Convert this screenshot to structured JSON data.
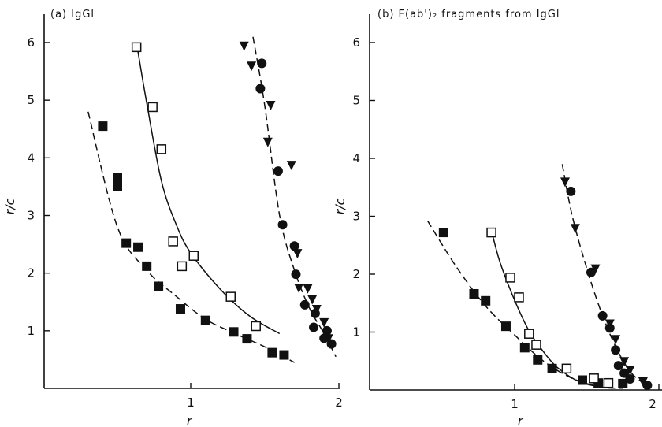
{
  "chart_data": [
    {
      "type": "scatter",
      "title": "(a) IgGl",
      "xlabel": "r",
      "ylabel": "r/c",
      "xlim": [
        0,
        2
      ],
      "ylim": [
        0,
        6.4
      ],
      "xticks": [
        "1",
        "2"
      ],
      "yticks": [
        "1",
        "2",
        "3",
        "4",
        "5",
        "6"
      ],
      "series": [
        {
          "marker": "filled-square",
          "points": [
            [
              0.4,
              4.55
            ],
            [
              0.5,
              3.65
            ],
            [
              0.5,
              3.5
            ],
            [
              0.56,
              2.52
            ],
            [
              0.64,
              2.45
            ],
            [
              0.7,
              2.12
            ],
            [
              0.78,
              1.77
            ],
            [
              0.93,
              1.38
            ],
            [
              1.1,
              1.18
            ],
            [
              1.29,
              0.98
            ],
            [
              1.38,
              0.86
            ],
            [
              1.55,
              0.62
            ],
            [
              1.63,
              0.58
            ]
          ],
          "fit": [
            [
              0.3,
              4.8
            ],
            [
              0.5,
              2.8
            ],
            [
              0.7,
              2.05
            ],
            [
              0.9,
              1.6
            ],
            [
              1.1,
              1.2
            ],
            [
              1.3,
              0.95
            ],
            [
              1.5,
              0.72
            ],
            [
              1.7,
              0.45
            ]
          ],
          "fit_style": "dashed"
        },
        {
          "marker": "open-square",
          "points": [
            [
              0.63,
              5.92
            ],
            [
              0.74,
              4.88
            ],
            [
              0.8,
              4.15
            ],
            [
              0.88,
              2.55
            ],
            [
              0.94,
              2.12
            ],
            [
              1.02,
              2.3
            ],
            [
              1.27,
              1.59
            ],
            [
              1.44,
              1.08
            ]
          ],
          "fit": [
            [
              0.63,
              6.0
            ],
            [
              0.7,
              4.95
            ],
            [
              0.8,
              3.6
            ],
            [
              0.9,
              2.85
            ],
            [
              1.0,
              2.35
            ],
            [
              1.2,
              1.72
            ],
            [
              1.4,
              1.25
            ],
            [
              1.6,
              0.95
            ]
          ],
          "fit_style": "solid"
        },
        {
          "marker": "filled-circle",
          "points": [
            [
              1.48,
              5.64
            ],
            [
              1.47,
              5.2
            ],
            [
              1.59,
              3.77
            ],
            [
              1.62,
              2.84
            ],
            [
              1.7,
              2.47
            ],
            [
              1.71,
              1.98
            ],
            [
              1.77,
              1.45
            ],
            [
              1.84,
              1.3
            ],
            [
              1.83,
              1.06
            ],
            [
              1.92,
              1.0
            ],
            [
              1.9,
              0.87
            ],
            [
              1.95,
              0.77
            ]
          ],
          "fit": [
            [
              1.42,
              6.1
            ],
            [
              1.5,
              4.9
            ],
            [
              1.6,
              3.0
            ],
            [
              1.7,
              2.05
            ],
            [
              1.8,
              1.4
            ],
            [
              1.9,
              0.95
            ],
            [
              1.98,
              0.55
            ]
          ],
          "fit_style": "dashed"
        },
        {
          "marker": "filled-triangle-down",
          "points": [
            [
              1.36,
              5.95
            ],
            [
              1.41,
              5.6
            ],
            [
              1.54,
              4.92
            ],
            [
              1.52,
              4.28
            ],
            [
              1.68,
              3.88
            ],
            [
              1.72,
              2.35
            ],
            [
              1.73,
              1.75
            ],
            [
              1.79,
              1.74
            ],
            [
              1.82,
              1.55
            ],
            [
              1.85,
              1.38
            ],
            [
              1.9,
              1.15
            ],
            [
              1.93,
              0.87
            ]
          ]
        }
      ]
    },
    {
      "type": "scatter",
      "title": "(b) F(ab')₂ fragments from IgGl",
      "xlabel": "r",
      "ylabel": "r/c",
      "xlim": [
        0,
        2
      ],
      "ylim": [
        0,
        6.4
      ],
      "xticks": [
        "1",
        "2"
      ],
      "yticks": [
        "1",
        "2",
        "3",
        "4",
        "5",
        "6"
      ],
      "series": [
        {
          "marker": "filled-square",
          "points": [
            [
              0.51,
              2.72
            ],
            [
              0.72,
              1.66
            ],
            [
              0.8,
              1.54
            ],
            [
              0.94,
              1.1
            ],
            [
              1.07,
              0.73
            ],
            [
              1.16,
              0.52
            ],
            [
              1.26,
              0.37
            ],
            [
              1.47,
              0.17
            ],
            [
              1.58,
              0.12
            ],
            [
              1.75,
              0.11
            ]
          ],
          "fit": [
            [
              0.4,
              2.92
            ],
            [
              0.6,
              2.12
            ],
            [
              0.8,
              1.45
            ],
            [
              1.0,
              0.95
            ],
            [
              1.2,
              0.5
            ],
            [
              1.4,
              0.2
            ],
            [
              1.6,
              0.05
            ],
            [
              1.75,
              0.03
            ]
          ],
          "fit_style": "dashed"
        },
        {
          "marker": "open-square",
          "points": [
            [
              0.84,
              2.72
            ],
            [
              0.97,
              1.94
            ],
            [
              1.03,
              1.6
            ],
            [
              1.1,
              0.97
            ],
            [
              1.15,
              0.78
            ],
            [
              1.36,
              0.37
            ],
            [
              1.55,
              0.2
            ],
            [
              1.65,
              0.12
            ]
          ],
          "fit": [
            [
              0.84,
              2.75
            ],
            [
              0.9,
              2.2
            ],
            [
              1.0,
              1.55
            ],
            [
              1.1,
              1.02
            ],
            [
              1.2,
              0.66
            ],
            [
              1.3,
              0.38
            ],
            [
              1.45,
              0.14
            ],
            [
              1.6,
              0.05
            ]
          ],
          "fit_style": "solid"
        },
        {
          "marker": "filled-circle",
          "points": [
            [
              1.39,
              3.43
            ],
            [
              1.53,
              2.03
            ],
            [
              1.61,
              1.28
            ],
            [
              1.66,
              1.07
            ],
            [
              1.7,
              0.69
            ],
            [
              1.72,
              0.42
            ],
            [
              1.76,
              0.29
            ],
            [
              1.8,
              0.19
            ],
            [
              1.92,
              0.08
            ]
          ]
        },
        {
          "marker": "filled-triangle-down",
          "points": [
            [
              1.35,
              3.6
            ],
            [
              1.42,
              2.8
            ],
            [
              1.56,
              2.1
            ],
            [
              1.66,
              1.15
            ],
            [
              1.7,
              0.88
            ],
            [
              1.76,
              0.5
            ],
            [
              1.8,
              0.35
            ],
            [
              1.89,
              0.15
            ]
          ],
          "fit": [
            [
              1.33,
              3.9
            ],
            [
              1.4,
              3.0
            ],
            [
              1.5,
              2.1
            ],
            [
              1.6,
              1.35
            ],
            [
              1.7,
              0.75
            ],
            [
              1.8,
              0.32
            ],
            [
              1.9,
              0.1
            ]
          ],
          "fit_style": "dashed"
        }
      ]
    }
  ]
}
